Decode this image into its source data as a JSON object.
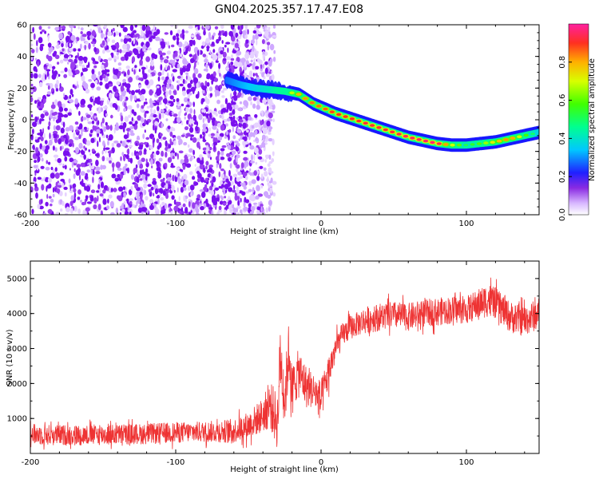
{
  "title": "GN04.2025.357.17.47.E08",
  "colors": {
    "speckle": "#7a10ee",
    "ridge": "#ff2020",
    "snr_line": "#ee3333",
    "frame": "#000000"
  },
  "chart_data": [
    {
      "type": "heatmap",
      "title": "GN04.2025.357.17.47.E08",
      "xlabel": "Height of straight line (km)",
      "ylabel": "Frequency (Hz)",
      "xlim": [
        -200,
        150
      ],
      "ylim": [
        -60,
        60
      ],
      "xticks": [
        -200,
        -100,
        0,
        100
      ],
      "yticks": [
        -60,
        -40,
        -20,
        0,
        20,
        40,
        60
      ],
      "colorbar": {
        "label": "Normalized spectral amplitude",
        "range": [
          0,
          1
        ],
        "ticks": [
          0.0,
          0.2,
          0.4,
          0.6,
          0.8
        ],
        "tick_labels": [
          "0.0",
          "0.2",
          "0.4",
          "0.6",
          "0.8"
        ],
        "colormap": "rainbow"
      },
      "noise_region_x": [
        -200,
        -40
      ],
      "ridge": {
        "x": [
          -65,
          -55,
          -45,
          -35,
          -25,
          -15,
          -5,
          0,
          10,
          20,
          30,
          40,
          50,
          60,
          70,
          80,
          90,
          100,
          110,
          120,
          130,
          140,
          150
        ],
        "freq": [
          25,
          22,
          20,
          19,
          18,
          16,
          10,
          8,
          4,
          1,
          -2,
          -5,
          -8,
          -11,
          -13,
          -15,
          -16,
          -16,
          -15,
          -14,
          -12,
          -10,
          -8
        ],
        "amplitude": [
          0.3,
          0.35,
          0.4,
          0.45,
          0.55,
          0.8,
          0.85,
          0.85,
          0.9,
          0.9,
          0.92,
          0.92,
          0.92,
          0.95,
          0.95,
          0.97,
          0.7,
          0.5,
          0.6,
          0.75,
          0.85,
          0.6,
          0.4
        ]
      }
    },
    {
      "type": "line",
      "xlabel": "Height of straight line (km)",
      "ylabel": "SNR (10 * v/v)",
      "xlim": [
        -200,
        150
      ],
      "ylim": [
        0,
        5500
      ],
      "xticks": [
        -200,
        -100,
        0,
        100
      ],
      "yticks": [
        1000,
        2000,
        3000,
        4000,
        5000
      ],
      "series": [
        {
          "name": "SNR",
          "x": [
            -200,
            -180,
            -160,
            -140,
            -120,
            -100,
            -80,
            -60,
            -50,
            -40,
            -35,
            -30,
            -28,
            -25,
            -22,
            -20,
            -18,
            -15,
            -10,
            -5,
            0,
            5,
            10,
            15,
            20,
            25,
            30,
            40,
            50,
            60,
            70,
            80,
            90,
            100,
            110,
            115,
            120,
            130,
            140,
            150
          ],
          "values": [
            550,
            520,
            530,
            540,
            560,
            600,
            620,
            650,
            800,
            1100,
            1400,
            900,
            2800,
            1500,
            3000,
            1700,
            2100,
            2300,
            1900,
            1800,
            1500,
            2300,
            3000,
            3400,
            3600,
            3700,
            3800,
            3900,
            3950,
            3900,
            4000,
            4050,
            4100,
            4100,
            4300,
            4400,
            4300,
            3900,
            3800,
            4000
          ],
          "noise_halfwidth": [
            300,
            300,
            300,
            300,
            300,
            300,
            300,
            350,
            400,
            500,
            700,
            800,
            1000,
            800,
            900,
            800,
            700,
            700,
            600,
            500,
            600,
            500,
            400,
            350,
            350,
            350,
            400,
            400,
            400,
            400,
            400,
            400,
            400,
            400,
            450,
            500,
            450,
            450,
            450,
            450
          ]
        }
      ]
    }
  ]
}
